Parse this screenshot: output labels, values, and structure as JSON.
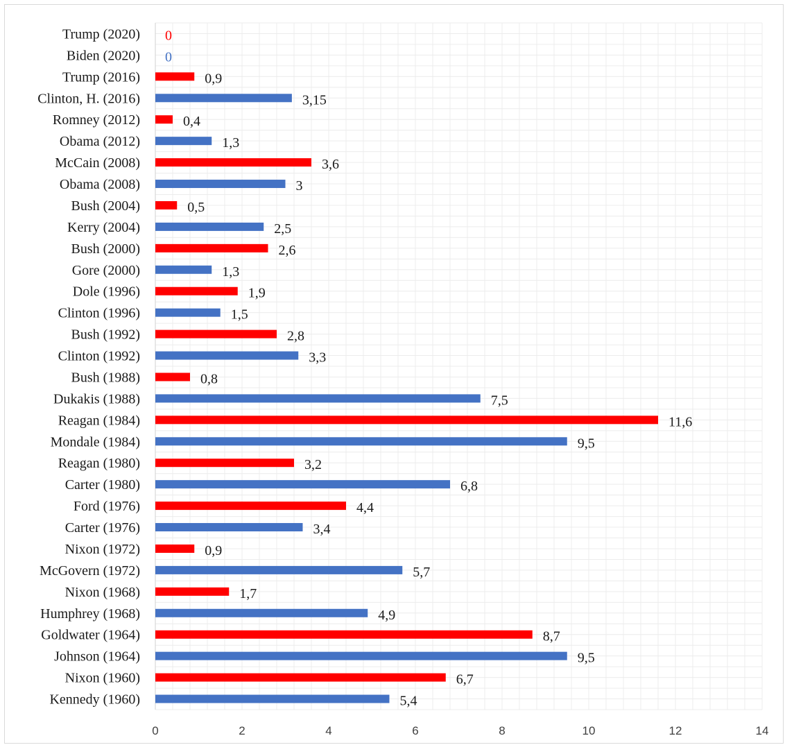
{
  "chart_data": {
    "type": "bar",
    "orientation": "horizontal",
    "categories": [
      "Trump (2020)",
      "Biden (2020)",
      "Trump (2016)",
      "Clinton, H. (2016)",
      "Romney (2012)",
      "Obama (2012)",
      "McCain (2008)",
      "Obama (2008)",
      "Bush (2004)",
      "Kerry (2004)",
      "Bush (2000)",
      "Gore (2000)",
      "Dole (1996)",
      "Clinton (1996)",
      "Bush (1992)",
      "Clinton (1992)",
      "Bush (1988)",
      "Dukakis (1988)",
      "Reagan (1984)",
      "Mondale (1984)",
      "Reagan (1980)",
      "Carter (1980)",
      "Ford (1976)",
      "Carter (1976)",
      "Nixon (1972)",
      "McGovern (1972)",
      "Nixon (1968)",
      "Humphrey (1968)",
      "Goldwater (1964)",
      "Johnson (1964)",
      "Nixon (1960)",
      "Kennedy (1960)"
    ],
    "values": [
      0,
      0,
      0.9,
      3.15,
      0.4,
      1.3,
      3.6,
      3,
      0.5,
      2.5,
      2.6,
      1.3,
      1.9,
      1.5,
      2.8,
      3.3,
      0.8,
      7.5,
      11.6,
      9.5,
      3.2,
      6.8,
      4.4,
      3.4,
      0.9,
      5.7,
      1.7,
      4.9,
      8.7,
      9.5,
      6.7,
      5.4
    ],
    "value_labels": [
      "0",
      "0",
      "0,9",
      "3,15",
      "0,4",
      "1,3",
      "3,6",
      "3",
      "0,5",
      "2,5",
      "2,6",
      "1,3",
      "1,9",
      "1,5",
      "2,8",
      "3,3",
      "0,8",
      "7,5",
      "11,6",
      "9,5",
      "3,2",
      "6,8",
      "4,4",
      "3,4",
      "0,9",
      "5,7",
      "1,7",
      "4,9",
      "8,7",
      "9,5",
      "6,7",
      "5,4"
    ],
    "party": [
      "R",
      "D",
      "R",
      "D",
      "R",
      "D",
      "R",
      "D",
      "R",
      "D",
      "R",
      "D",
      "R",
      "D",
      "R",
      "D",
      "R",
      "D",
      "R",
      "D",
      "R",
      "D",
      "R",
      "D",
      "R",
      "D",
      "R",
      "D",
      "R",
      "D",
      "R",
      "D"
    ],
    "colors": {
      "R": "#ff0000",
      "D": "#4472c4"
    },
    "xlim": [
      0,
      14
    ],
    "xticks": [
      0,
      2,
      4,
      6,
      8,
      10,
      12,
      14
    ],
    "minor_grid_step": 0.4,
    "grid": true,
    "legend": "none",
    "title": "",
    "xlabel": "",
    "ylabel": ""
  }
}
